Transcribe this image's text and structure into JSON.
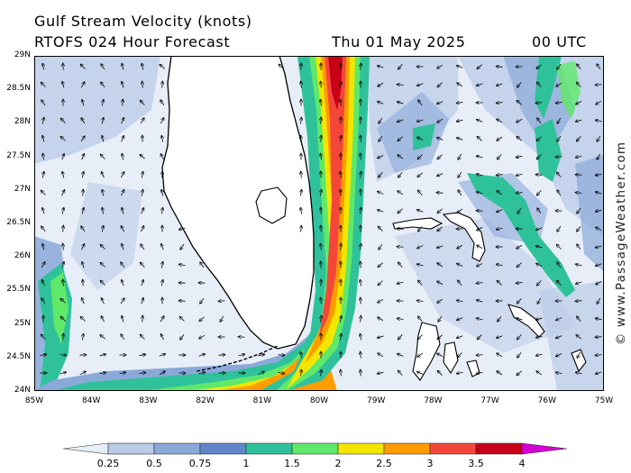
{
  "header": {
    "title_line1": "Gulf Stream Velocity (knots)",
    "model_line": "RTOFS 024 Hour Forecast",
    "date": "Thu 01 May 2025",
    "time": "00 UTC"
  },
  "map": {
    "lat_labels": [
      "29N",
      "28.5N",
      "28N",
      "27.5N",
      "27N",
      "26.5N",
      "26N",
      "25.5N",
      "25N",
      "24.5N",
      "24N"
    ],
    "lon_labels": [
      "85W",
      "84W",
      "83W",
      "82W",
      "81W",
      "80W",
      "79W",
      "78W",
      "77W",
      "76W",
      "75W"
    ],
    "lat_range": [
      24,
      29
    ],
    "lon_range": [
      -85,
      -75
    ],
    "land_color": "#ffffff",
    "arrow_icon": "current-direction-arrow-icon"
  },
  "credit": "© www.PassageWeather.com",
  "colorbar": {
    "labels": [
      "0.25",
      "0.5",
      "0.75",
      "1",
      "1.5",
      "2",
      "2.5",
      "3",
      "3.5",
      "4"
    ],
    "colors": [
      "#e8eef8",
      "#b9cbe8",
      "#8aa9d9",
      "#5f86c9",
      "#2fc29a",
      "#5fe86a",
      "#f2e600",
      "#ff9c00",
      "#f4473a",
      "#c80018",
      "#d400d4"
    ]
  }
}
